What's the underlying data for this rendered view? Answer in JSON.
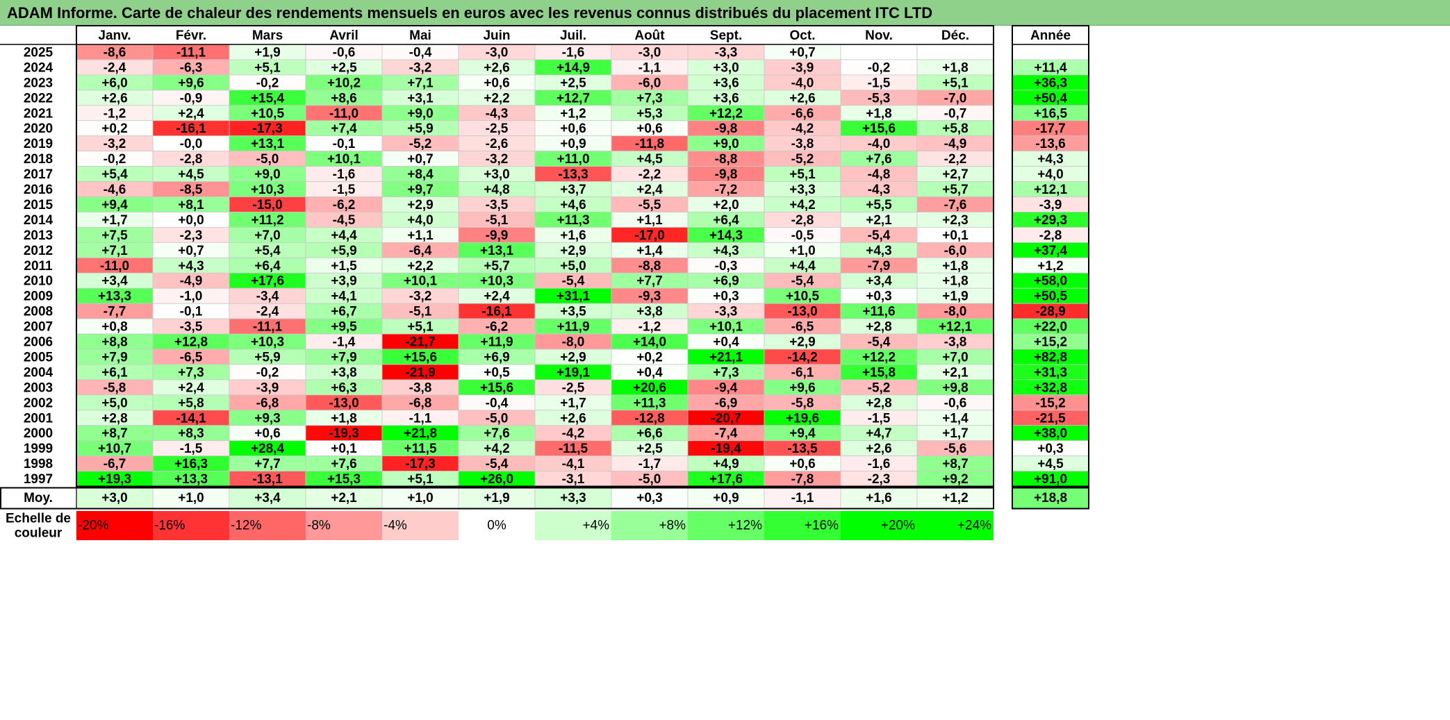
{
  "title": "ADAM Informe. Carte de chaleur des rendements mensuels en euros avec les revenus connus distribués du placement ITC LTD",
  "chart_data": {
    "type": "heatmap",
    "title": "ADAM Informe. Carte de chaleur des rendements mensuels en euros avec les revenus connus distribués du placement ITC LTD",
    "columns": [
      "Janv.",
      "Févr.",
      "Mars",
      "Avril",
      "Mai",
      "Juin",
      "Juil.",
      "Août",
      "Sept.",
      "Oct.",
      "Nov.",
      "Déc."
    ],
    "year_column_label": "Année",
    "rows": [
      {
        "year": "2025",
        "values": [
          "-8,6",
          "-11,1",
          "+1,9",
          "-0,6",
          "-0,4",
          "-3,0",
          "-1,6",
          "-3,0",
          "-3,3",
          "+0,7",
          "",
          ""
        ],
        "annual": ""
      },
      {
        "year": "2024",
        "values": [
          "-2,4",
          "-6,3",
          "+5,1",
          "+2,5",
          "-3,2",
          "+2,6",
          "+14,9",
          "-1,1",
          "+3,0",
          "-3,9",
          "-0,2",
          "+1,8"
        ],
        "annual": "+11,4"
      },
      {
        "year": "2023",
        "values": [
          "+6,0",
          "+9,6",
          "-0,2",
          "+10,2",
          "+7,1",
          "+0,6",
          "+2,5",
          "-6,0",
          "+3,6",
          "-4,0",
          "-1,5",
          "+5,1"
        ],
        "annual": "+36,3"
      },
      {
        "year": "2022",
        "values": [
          "+2,6",
          "-0,9",
          "+15,4",
          "+8,6",
          "+3,1",
          "+2,2",
          "+12,7",
          "+7,3",
          "+3,6",
          "+2,6",
          "-5,3",
          "-7,0"
        ],
        "annual": "+50,4"
      },
      {
        "year": "2021",
        "values": [
          "-1,2",
          "+2,4",
          "+10,5",
          "-11,0",
          "+9,0",
          "-4,3",
          "+1,2",
          "+5,3",
          "+12,2",
          "-6,6",
          "+1,8",
          "-0,7"
        ],
        "annual": "+16,5"
      },
      {
        "year": "2020",
        "values": [
          "+0,2",
          "-16,1",
          "-17,3",
          "+7,4",
          "+5,9",
          "-2,5",
          "+0,6",
          "+0,6",
          "-9,8",
          "-4,2",
          "+15,6",
          "+5,8"
        ],
        "annual": "-17,7"
      },
      {
        "year": "2019",
        "values": [
          "-3,2",
          "-0,0",
          "+13,1",
          "-0,1",
          "-5,2",
          "-2,6",
          "+0,9",
          "-11,8",
          "+9,0",
          "-3,8",
          "-4,0",
          "-4,9"
        ],
        "annual": "-13,6"
      },
      {
        "year": "2018",
        "values": [
          "-0,2",
          "-2,8",
          "-5,0",
          "+10,1",
          "+0,7",
          "-3,2",
          "+11,0",
          "+4,5",
          "-8,8",
          "-5,2",
          "+7,6",
          "-2,2"
        ],
        "annual": "+4,3"
      },
      {
        "year": "2017",
        "values": [
          "+5,4",
          "+4,5",
          "+9,0",
          "-1,6",
          "+8,4",
          "+3,0",
          "-13,3",
          "-2,2",
          "-9,8",
          "+5,1",
          "-4,8",
          "+2,7"
        ],
        "annual": "+4,0"
      },
      {
        "year": "2016",
        "values": [
          "-4,6",
          "-8,5",
          "+10,3",
          "-1,5",
          "+9,7",
          "+4,8",
          "+3,7",
          "+2,4",
          "-7,2",
          "+3,3",
          "-4,3",
          "+5,7"
        ],
        "annual": "+12,1"
      },
      {
        "year": "2015",
        "values": [
          "+9,4",
          "+8,1",
          "-15,0",
          "-6,2",
          "+2,9",
          "-3,5",
          "+4,6",
          "-5,5",
          "+2,0",
          "+4,2",
          "+5,5",
          "-7,6"
        ],
        "annual": "-3,9"
      },
      {
        "year": "2014",
        "values": [
          "+1,7",
          "+0,0",
          "+11,2",
          "-4,5",
          "+4,0",
          "-5,1",
          "+11,3",
          "+1,1",
          "+6,4",
          "-2,8",
          "+2,1",
          "+2,3"
        ],
        "annual": "+29,3"
      },
      {
        "year": "2013",
        "values": [
          "+7,5",
          "-2,3",
          "+7,0",
          "+4,4",
          "+1,1",
          "-9,9",
          "+1,6",
          "-17,0",
          "+14,3",
          "-0,5",
          "-5,4",
          "+0,1"
        ],
        "annual": "-2,8"
      },
      {
        "year": "2012",
        "values": [
          "+7,1",
          "+0,7",
          "+5,4",
          "+5,9",
          "-6,4",
          "+13,1",
          "+2,9",
          "+1,4",
          "+4,3",
          "+1,0",
          "+4,3",
          "-6,0"
        ],
        "annual": "+37,4"
      },
      {
        "year": "2011",
        "values": [
          "-11,0",
          "+4,3",
          "+6,4",
          "+1,5",
          "+2,2",
          "+5,7",
          "+5,0",
          "-8,8",
          "-0,3",
          "+4,4",
          "-7,9",
          "+1,8"
        ],
        "annual": "+1,2"
      },
      {
        "year": "2010",
        "values": [
          "+3,4",
          "-4,9",
          "+17,6",
          "+3,9",
          "+10,1",
          "+10,3",
          "-5,4",
          "+7,7",
          "+6,9",
          "-5,4",
          "+3,4",
          "+1,8"
        ],
        "annual": "+58,0"
      },
      {
        "year": "2009",
        "values": [
          "+13,3",
          "-1,0",
          "-3,4",
          "+4,1",
          "-3,2",
          "+2,4",
          "+31,1",
          "-9,3",
          "+0,3",
          "+10,5",
          "+0,3",
          "+1,9"
        ],
        "annual": "+50,5"
      },
      {
        "year": "2008",
        "values": [
          "-7,7",
          "-0,1",
          "-2,4",
          "+6,7",
          "-5,1",
          "-16,1",
          "+3,5",
          "+3,8",
          "-3,3",
          "-13,0",
          "+11,6",
          "-8,0"
        ],
        "annual": "-28,9"
      },
      {
        "year": "2007",
        "values": [
          "+0,8",
          "-3,5",
          "-11,1",
          "+9,5",
          "+5,1",
          "-6,2",
          "+11,9",
          "-1,2",
          "+10,1",
          "-6,5",
          "+2,8",
          "+12,1"
        ],
        "annual": "+22,0"
      },
      {
        "year": "2006",
        "values": [
          "+8,8",
          "+12,8",
          "+10,3",
          "-1,4",
          "-21,7",
          "+11,9",
          "-8,0",
          "+14,0",
          "+0,4",
          "+2,9",
          "-5,4",
          "-3,8"
        ],
        "annual": "+15,2"
      },
      {
        "year": "2005",
        "values": [
          "+7,9",
          "-6,5",
          "+5,9",
          "+7,9",
          "+15,6",
          "+6,9",
          "+2,9",
          "+0,2",
          "+21,1",
          "-14,2",
          "+12,2",
          "+7,0"
        ],
        "annual": "+82,8"
      },
      {
        "year": "2004",
        "values": [
          "+6,1",
          "+7,3",
          "-0,2",
          "+3,8",
          "-21,9",
          "+0,5",
          "+19,1",
          "+0,4",
          "+7,3",
          "-6,1",
          "+15,8",
          "+2,1"
        ],
        "annual": "+31,3"
      },
      {
        "year": "2003",
        "values": [
          "-5,8",
          "+2,4",
          "-3,9",
          "+6,3",
          "-3,8",
          "+15,6",
          "-2,5",
          "+20,6",
          "-9,4",
          "+9,6",
          "-5,2",
          "+9,8"
        ],
        "annual": "+32,8"
      },
      {
        "year": "2002",
        "values": [
          "+5,0",
          "+5,8",
          "-6,8",
          "-13,0",
          "-6,8",
          "-0,4",
          "+1,7",
          "+11,3",
          "-6,9",
          "-5,8",
          "+2,8",
          "-0,6"
        ],
        "annual": "-15,2"
      },
      {
        "year": "2001",
        "values": [
          "+2,8",
          "-14,1",
          "+9,3",
          "+1,8",
          "-1,1",
          "-5,0",
          "+2,6",
          "-12,8",
          "-20,7",
          "+19,6",
          "-1,5",
          "+1,4"
        ],
        "annual": "-21,5"
      },
      {
        "year": "2000",
        "values": [
          "+8,7",
          "+8,3",
          "+0,6",
          "-19,3",
          "+21,8",
          "+7,6",
          "-4,2",
          "+6,6",
          "-7,4",
          "+9,4",
          "+4,7",
          "+1,7"
        ],
        "annual": "+38,0"
      },
      {
        "year": "1999",
        "values": [
          "+10,7",
          "-1,5",
          "+28,4",
          "+0,1",
          "+11,5",
          "+4,2",
          "-11,5",
          "+2,5",
          "-19,4",
          "-13,5",
          "+2,6",
          "-5,6"
        ],
        "annual": "+0,3"
      },
      {
        "year": "1998",
        "values": [
          "-6,7",
          "+16,3",
          "+7,7",
          "+7,6",
          "-17,3",
          "-5,4",
          "-4,1",
          "-1,7",
          "+4,9",
          "+0,6",
          "-1,6",
          "+8,7"
        ],
        "annual": "+4,5"
      },
      {
        "year": "1997",
        "values": [
          "+19,3",
          "+13,3",
          "-13,1",
          "+15,3",
          "+5,1",
          "+26,0",
          "-3,1",
          "-5,0",
          "+17,6",
          "-7,8",
          "-2,3",
          "+9,2"
        ],
        "annual": "+91,0"
      }
    ],
    "average": {
      "label": "Moy.",
      "values": [
        "+3,0",
        "+1,0",
        "+3,4",
        "+2,1",
        "+1,0",
        "+1,9",
        "+3,3",
        "+0,3",
        "+0,9",
        "-1,1",
        "+1,6",
        "+1,2"
      ],
      "annual": "+18,8"
    },
    "scale": {
      "label_line1": "Echelle de",
      "label_line2": "couleur",
      "stops": [
        "-20%",
        "-16%",
        "-12%",
        "-8%",
        "-4%",
        "0%",
        "+4%",
        "+8%",
        "+12%",
        "+16%",
        "+20%",
        "+24%"
      ],
      "stop_values": [
        -20,
        -16,
        -12,
        -8,
        -4,
        0,
        4,
        8,
        12,
        16,
        20,
        24
      ]
    },
    "colors": {
      "negative": "#ff0000",
      "positive": "#00ff00",
      "neutral": "#ffffff"
    }
  }
}
